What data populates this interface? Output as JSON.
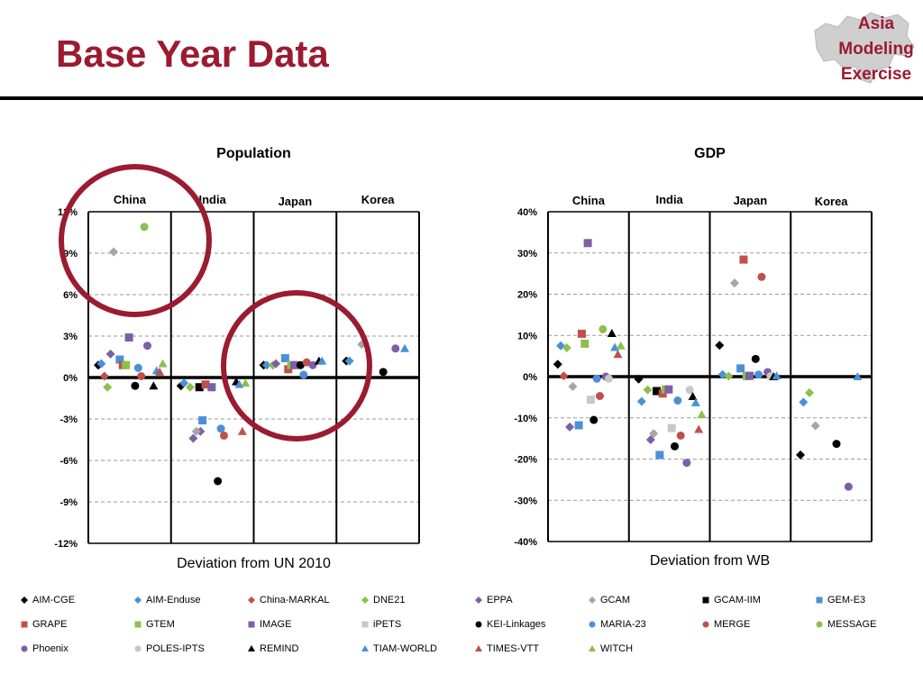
{
  "slide": {
    "title": "Base Year Data",
    "logo_lines": [
      "Asia",
      "Modeling",
      "Exercise"
    ],
    "colors": {
      "title": "#9b1b30",
      "accent": "#9b1b30"
    }
  },
  "chart_data": [
    {
      "type": "scatter",
      "title": "Population",
      "xlabel": "Deviation from UN 2010",
      "ylabel": "",
      "panels": [
        "China",
        "India",
        "Japan",
        "Korea"
      ],
      "y_ticks": [
        "12%",
        "9%",
        "6%",
        "3%",
        "0%",
        "-3%",
        "-6%",
        "-9%",
        "-12%"
      ],
      "ylim": [
        -12,
        12
      ],
      "grid": true,
      "series": [
        {
          "name": "AIM-CGE",
          "points": [
            [
              "China",
              0.9
            ],
            [
              "India",
              -0.6
            ],
            [
              "Japan",
              0.9
            ],
            [
              "Korea",
              1.2
            ]
          ]
        },
        {
          "name": "AIM-Enduse",
          "points": [
            [
              "China",
              1.0
            ],
            [
              "India",
              -0.4
            ],
            [
              "Japan",
              0.9
            ],
            [
              "Korea",
              1.2
            ]
          ]
        },
        {
          "name": "China-MARKAL",
          "points": [
            [
              "China",
              0.1
            ]
          ]
        },
        {
          "name": "DNE21",
          "points": [
            [
              "China",
              -0.7
            ],
            [
              "India",
              -0.7
            ],
            [
              "Japan",
              0.9
            ]
          ]
        },
        {
          "name": "EPPA",
          "points": [
            [
              "China",
              1.7
            ],
            [
              "India",
              -4.4
            ],
            [
              "India",
              -3.9
            ],
            [
              "Japan",
              1.0
            ]
          ]
        },
        {
          "name": "GCAM",
          "points": [
            [
              "China",
              9.1
            ],
            [
              "India",
              -3.9
            ],
            [
              "Korea",
              2.4
            ]
          ]
        },
        {
          "name": "GCAM-IIM",
          "points": [
            [
              "India",
              -0.7
            ]
          ]
        },
        {
          "name": "GEM-E3",
          "points": [
            [
              "China",
              1.3
            ],
            [
              "India",
              -3.1
            ],
            [
              "Japan",
              1.4
            ]
          ]
        },
        {
          "name": "GRAPE",
          "points": [
            [
              "China",
              0.9
            ],
            [
              "India",
              -0.5
            ],
            [
              "Japan",
              0.6
            ]
          ]
        },
        {
          "name": "GTEM",
          "points": [
            [
              "China",
              0.9
            ],
            [
              "Japan",
              0.9
            ]
          ]
        },
        {
          "name": "IMAGE",
          "points": [
            [
              "China",
              2.9
            ],
            [
              "India",
              -0.7
            ],
            [
              "Japan",
              0.9
            ]
          ]
        },
        {
          "name": "iPETS",
          "points": []
        },
        {
          "name": "KEI-Linkages",
          "points": [
            [
              "China",
              -0.6
            ],
            [
              "India",
              -7.5
            ],
            [
              "Japan",
              0.9
            ],
            [
              "Korea",
              0.4
            ]
          ]
        },
        {
          "name": "MARIA-23",
          "points": [
            [
              "China",
              0.7
            ],
            [
              "India",
              -3.7
            ],
            [
              "Japan",
              0.2
            ]
          ]
        },
        {
          "name": "MERGE",
          "points": [
            [
              "China",
              0.1
            ],
            [
              "India",
              -4.2
            ],
            [
              "Japan",
              1.1
            ]
          ]
        },
        {
          "name": "MESSAGE",
          "points": [
            [
              "China",
              10.9
            ]
          ]
        },
        {
          "name": "Phoenix",
          "points": [
            [
              "China",
              2.3
            ],
            [
              "Japan",
              0.9
            ],
            [
              "Korea",
              2.1
            ]
          ]
        },
        {
          "name": "POLES-IPTS",
          "points": []
        },
        {
          "name": "REMIND",
          "points": [
            [
              "China",
              -0.6
            ],
            [
              "India",
              -0.3
            ],
            [
              "Japan",
              1.2
            ]
          ]
        },
        {
          "name": "TIAM-WORLD",
          "points": [
            [
              "China",
              0.5
            ],
            [
              "India",
              -0.5
            ],
            [
              "Japan",
              1.2
            ],
            [
              "Korea",
              2.1
            ]
          ]
        },
        {
          "name": "TIMES-VTT",
          "points": [
            [
              "China",
              0.4
            ],
            [
              "India",
              -3.9
            ]
          ]
        },
        {
          "name": "WITCH",
          "points": [
            [
              "China",
              1.0
            ],
            [
              "India",
              -0.4
            ]
          ]
        }
      ]
    },
    {
      "type": "scatter",
      "title": "GDP",
      "xlabel": "Deviation from WB",
      "ylabel": "",
      "panels": [
        "China",
        "India",
        "Japan",
        "Korea"
      ],
      "y_ticks": [
        "40%",
        "30%",
        "20%",
        "10%",
        "0%",
        "-10%",
        "-20%",
        "-30%",
        "-40%"
      ],
      "ylim": [
        -40,
        40
      ],
      "grid": true,
      "series": [
        {
          "name": "AIM-CGE",
          "points": [
            [
              "China",
              3.0
            ],
            [
              "India",
              -0.6
            ],
            [
              "Japan",
              7.6
            ],
            [
              "Korea",
              -19.0
            ]
          ]
        },
        {
          "name": "AIM-Enduse",
          "points": [
            [
              "China",
              7.5
            ],
            [
              "India",
              -6.0
            ],
            [
              "Japan",
              0.5
            ],
            [
              "Korea",
              -6.2
            ]
          ]
        },
        {
          "name": "China-MARKAL",
          "points": [
            [
              "China",
              0.2
            ]
          ]
        },
        {
          "name": "DNE21",
          "points": [
            [
              "China",
              7.0
            ],
            [
              "India",
              -3.2
            ],
            [
              "Japan",
              0.1
            ],
            [
              "Korea",
              -3.9
            ]
          ]
        },
        {
          "name": "EPPA",
          "points": [
            [
              "China",
              -12.2
            ],
            [
              "India",
              -15.3
            ]
          ]
        },
        {
          "name": "GCAM",
          "points": [
            [
              "China",
              -2.4
            ],
            [
              "India",
              -13.8
            ],
            [
              "Japan",
              22.7
            ],
            [
              "Korea",
              -11.9
            ]
          ]
        },
        {
          "name": "GCAM-IIM",
          "points": [
            [
              "India",
              -3.5
            ]
          ]
        },
        {
          "name": "GEM-E3",
          "points": [
            [
              "China",
              -11.8
            ],
            [
              "India",
              -19.0
            ],
            [
              "Japan",
              2.0
            ]
          ]
        },
        {
          "name": "GRAPE",
          "points": [
            [
              "China",
              10.4
            ],
            [
              "India",
              -4.1
            ],
            [
              "Japan",
              28.4
            ]
          ]
        },
        {
          "name": "GTEM",
          "points": [
            [
              "China",
              8.0
            ],
            [
              "India",
              -3.1
            ],
            [
              "Japan",
              0.1
            ]
          ]
        },
        {
          "name": "IMAGE",
          "points": [
            [
              "China",
              32.4
            ],
            [
              "India",
              -3.1
            ],
            [
              "Japan",
              0.2
            ]
          ]
        },
        {
          "name": "iPETS",
          "points": [
            [
              "China",
              -5.6
            ],
            [
              "India",
              -12.5
            ]
          ]
        },
        {
          "name": "KEI-Linkages",
          "points": [
            [
              "China",
              -10.5
            ],
            [
              "India",
              -16.9
            ],
            [
              "Japan",
              4.3
            ],
            [
              "Korea",
              -16.3
            ]
          ]
        },
        {
          "name": "MARIA-23",
          "points": [
            [
              "China",
              -0.5
            ],
            [
              "India",
              -5.8
            ],
            [
              "Japan",
              0.5
            ]
          ]
        },
        {
          "name": "MERGE",
          "points": [
            [
              "China",
              -4.7
            ],
            [
              "India",
              -14.3
            ],
            [
              "Japan",
              24.2
            ]
          ]
        },
        {
          "name": "MESSAGE",
          "points": [
            [
              "China",
              11.5
            ]
          ]
        },
        {
          "name": "Phoenix",
          "points": [
            [
              "China",
              0.0
            ],
            [
              "India",
              -20.9
            ],
            [
              "Japan",
              1.1
            ],
            [
              "Korea",
              -26.7
            ]
          ]
        },
        {
          "name": "POLES-IPTS",
          "points": [
            [
              "China",
              -0.5
            ],
            [
              "India",
              -3.2
            ],
            [
              "Japan",
              0.1
            ]
          ]
        },
        {
          "name": "REMIND",
          "points": [
            [
              "China",
              10.5
            ],
            [
              "India",
              -4.8
            ],
            [
              "Japan",
              0.0
            ]
          ]
        },
        {
          "name": "TIAM-WORLD",
          "points": [
            [
              "China",
              7.1
            ],
            [
              "India",
              -6.3
            ],
            [
              "Japan",
              0.2
            ],
            [
              "Korea",
              0.0
            ]
          ]
        },
        {
          "name": "TIMES-VTT",
          "points": [
            [
              "China",
              5.4
            ],
            [
              "India",
              -12.8
            ]
          ]
        },
        {
          "name": "WITCH",
          "points": [
            [
              "China",
              7.5
            ],
            [
              "India",
              -9.2
            ]
          ]
        }
      ]
    }
  ],
  "legend": {
    "columns": 8,
    "items": [
      {
        "name": "AIM-CGE",
        "shape": "diamond",
        "color": "#000000"
      },
      {
        "name": "AIM-Enduse",
        "shape": "diamond",
        "color": "#4a90d9"
      },
      {
        "name": "China-MARKAL",
        "shape": "diamond",
        "color": "#c0504d"
      },
      {
        "name": "DNE21",
        "shape": "diamond",
        "color": "#8cc04b"
      },
      {
        "name": "EPPA",
        "shape": "diamond",
        "color": "#7d5fa6"
      },
      {
        "name": "GCAM",
        "shape": "diamond",
        "color": "#a6a6a6"
      },
      {
        "name": "GCAM-IIM",
        "shape": "square",
        "color": "#000000"
      },
      {
        "name": "GEM-E3",
        "shape": "square",
        "color": "#4a90d9"
      },
      {
        "name": "GRAPE",
        "shape": "square",
        "color": "#c0504d"
      },
      {
        "name": "GTEM",
        "shape": "square",
        "color": "#8cc04b"
      },
      {
        "name": "IMAGE",
        "shape": "square",
        "color": "#7d5fa6"
      },
      {
        "name": "iPETS",
        "shape": "square",
        "color": "#c8c8c8"
      },
      {
        "name": "KEI-Linkages",
        "shape": "circle",
        "color": "#000000"
      },
      {
        "name": "MARIA-23",
        "shape": "circle",
        "color": "#4a90d9"
      },
      {
        "name": "MERGE",
        "shape": "circle",
        "color": "#c0504d"
      },
      {
        "name": "MESSAGE",
        "shape": "circle",
        "color": "#8cc04b"
      },
      {
        "name": "Phoenix",
        "shape": "circle",
        "color": "#7d5fa6"
      },
      {
        "name": "POLES-IPTS",
        "shape": "circle",
        "color": "#c8c8c8"
      },
      {
        "name": "REMIND",
        "shape": "triangle",
        "color": "#000000"
      },
      {
        "name": "TIAM-WORLD",
        "shape": "triangle",
        "color": "#4a90d9"
      },
      {
        "name": "TIMES-VTT",
        "shape": "triangle",
        "color": "#c0504d"
      },
      {
        "name": "WITCH",
        "shape": "triangle",
        "color": "#8cc04b"
      }
    ]
  }
}
